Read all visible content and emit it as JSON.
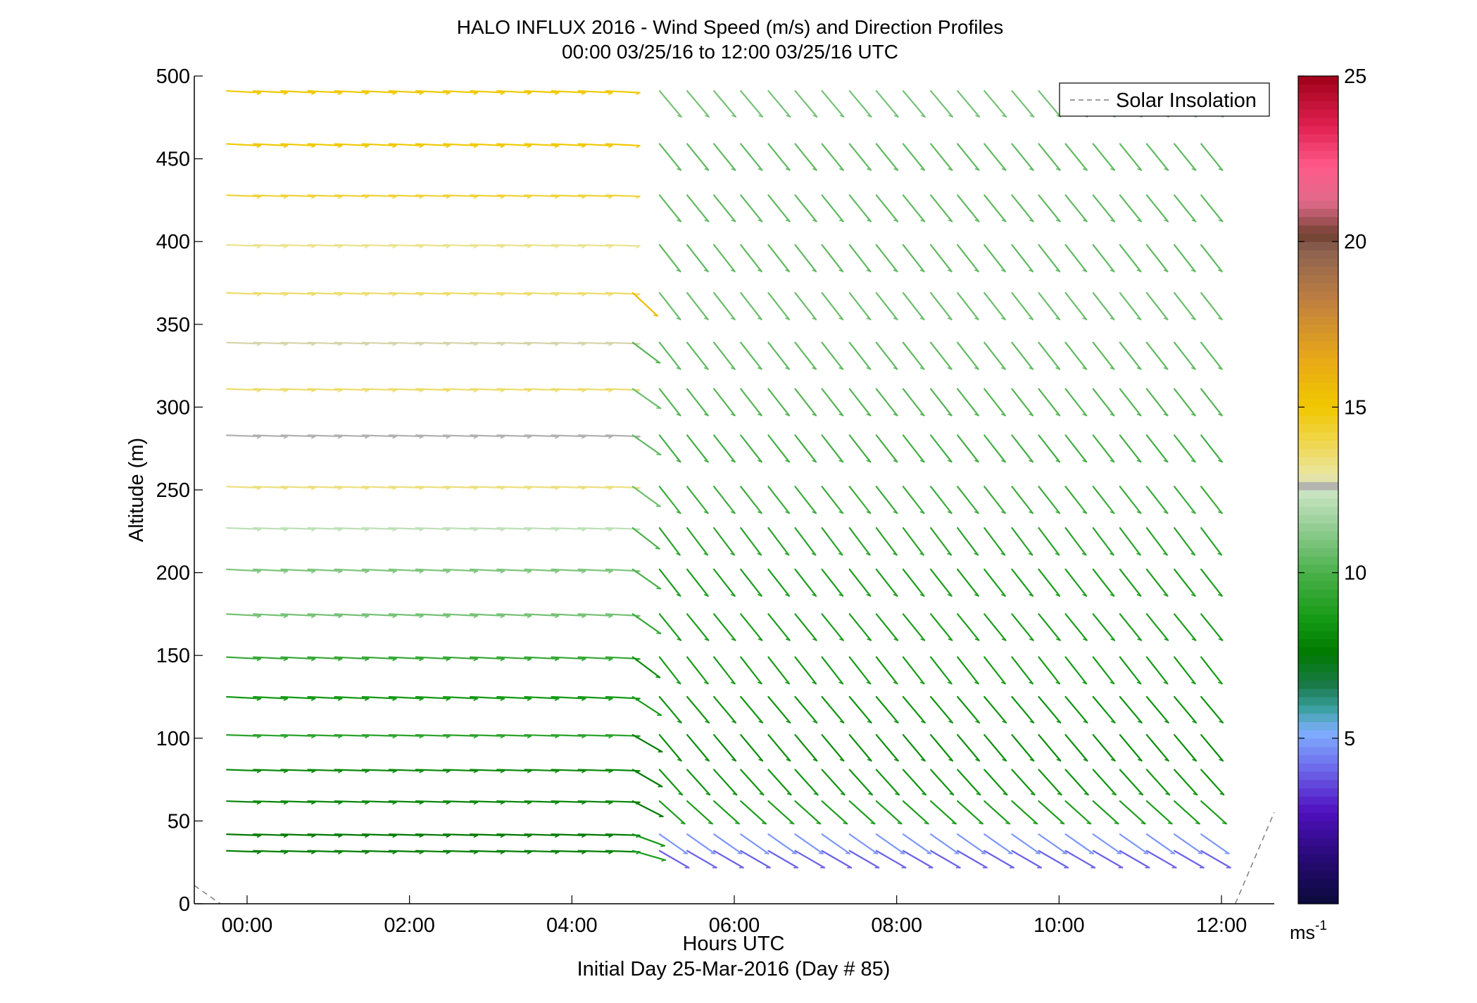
{
  "chart_data": {
    "type": "wind_barb_profile",
    "title": "HALO INFLUX 2016 - Wind Speed (m/s) and Direction Profiles",
    "subtitle": "00:00 03/25/16 to 12:00 03/25/16  UTC",
    "xlabel": "Hours UTC",
    "xlabel2": "Initial Day 25-Mar-2016 (Day # 85)",
    "ylabel": "Altitude (m)",
    "xlim_hours": [
      -0.65,
      12.65
    ],
    "ylim": [
      0,
      500
    ],
    "x_ticks": [
      {
        "value": 0,
        "label": "00:00"
      },
      {
        "value": 2,
        "label": "02:00"
      },
      {
        "value": 4,
        "label": "04:00"
      },
      {
        "value": 6,
        "label": "06:00"
      },
      {
        "value": 8,
        "label": "08:00"
      },
      {
        "value": 10,
        "label": "10:00"
      },
      {
        "value": 12,
        "label": "12:00"
      }
    ],
    "y_ticks": [
      0,
      50,
      100,
      150,
      200,
      250,
      300,
      350,
      400,
      450,
      500
    ],
    "legend": {
      "position": "top-right",
      "entries": [
        {
          "label": "Solar Insolation",
          "style": "dashed",
          "color": "#7f7f7f"
        }
      ]
    },
    "colorbar": {
      "range": [
        0,
        25
      ],
      "ticks": [
        5,
        10,
        15,
        20,
        25
      ],
      "units_label": "ms",
      "units_exp": "-1",
      "stops": [
        {
          "v": 0,
          "c": "#0a0a3a"
        },
        {
          "v": 1.5,
          "c": "#2a0a7a"
        },
        {
          "v": 2.8,
          "c": "#5010c0"
        },
        {
          "v": 4.2,
          "c": "#7070ee"
        },
        {
          "v": 5.2,
          "c": "#80b0ff"
        },
        {
          "v": 5.9,
          "c": "#3aa0a0"
        },
        {
          "v": 6.6,
          "c": "#1a7a4a"
        },
        {
          "v": 7.6,
          "c": "#007a00"
        },
        {
          "v": 8.6,
          "c": "#149a14"
        },
        {
          "v": 10,
          "c": "#4ab04a"
        },
        {
          "v": 11.5,
          "c": "#9ad09a"
        },
        {
          "v": 12.4,
          "c": "#c8e4c0"
        },
        {
          "v": 12.6,
          "c": "#b0b0b0"
        },
        {
          "v": 12.9,
          "c": "#e8e8a8"
        },
        {
          "v": 13.8,
          "c": "#f0d858"
        },
        {
          "v": 15,
          "c": "#f0c800"
        },
        {
          "v": 16.5,
          "c": "#e8a818"
        },
        {
          "v": 18.2,
          "c": "#c08040"
        },
        {
          "v": 19.8,
          "c": "#8a6050"
        },
        {
          "v": 20.2,
          "c": "#704030"
        },
        {
          "v": 21.2,
          "c": "#e06a8a"
        },
        {
          "v": 22.3,
          "c": "#ff5a8a"
        },
        {
          "v": 23.5,
          "c": "#e02050"
        },
        {
          "v": 25,
          "c": "#a00018"
        }
      ]
    },
    "times_hours": [
      -0.25,
      0.08,
      0.42,
      0.75,
      1.08,
      1.42,
      1.75,
      2.08,
      2.42,
      2.75,
      3.08,
      3.42,
      3.75,
      4.08,
      4.42,
      4.75,
      5.08,
      5.42,
      5.75,
      6.08,
      6.42,
      6.75,
      7.08,
      7.42,
      7.75,
      8.08,
      8.42,
      8.75,
      9.08,
      9.42,
      9.75,
      10.08,
      10.42,
      10.75,
      11.08,
      11.42,
      11.75
    ],
    "altitudes_m": [
      32,
      42,
      62,
      81,
      102,
      125,
      149,
      175,
      202,
      227,
      252,
      283,
      311,
      339,
      369,
      398,
      428,
      459,
      491
    ],
    "period_profiles": [
      {
        "from_hour": -0.3,
        "to_hour": 4.45,
        "direction_deg_by_altitude": [
          272,
          272,
          272,
          272,
          272,
          273,
          273,
          273,
          273,
          272,
          272,
          272,
          272,
          272,
          272,
          272,
          272,
          273,
          273
        ],
        "speed_ms_by_altitude": [
          7.8,
          7.6,
          8.0,
          8.1,
          9.2,
          8.6,
          9.4,
          10.8,
          11.0,
          12.2,
          13.4,
          12.6,
          13.6,
          12.8,
          13.6,
          13.2,
          14.2,
          15.0,
          15.0
        ]
      },
      {
        "from_hour": 4.45,
        "to_hour": 4.95,
        "direction_deg_by_altitude": [
          286,
          290,
          297,
          300,
          300,
          303,
          307,
          305,
          305,
          308,
          306,
          305,
          305,
          307,
          313,
          313,
          313,
          313,
          313
        ],
        "speed_ms_by_altitude": [
          8.8,
          8.4,
          7.6,
          7.6,
          7.6,
          8.6,
          8.2,
          9.4,
          10.0,
          10.0,
          10.6,
          10.4,
          10.6,
          10.2,
          15.5,
          15.5,
          15.5,
          15.5,
          15.5
        ]
      },
      {
        "from_hour": 4.95,
        "to_hour": 12.0,
        "direction_deg_by_altitude": [
          300,
          305,
          312,
          318,
          320,
          320,
          322,
          321,
          322,
          323,
          322,
          322,
          322,
          322,
          322,
          322,
          321,
          321,
          320
        ],
        "speed_ms_by_altitude": [
          4.0,
          4.8,
          8.8,
          8.4,
          8.2,
          8.4,
          8.6,
          8.8,
          8.8,
          9.2,
          9.6,
          9.8,
          10.2,
          10.4,
          10.6,
          10.4,
          10.4,
          10.4,
          10.8
        ]
      }
    ],
    "data_gaps": [
      {
        "from_hour": 4.45,
        "to_hour": 4.95,
        "above_altitude_m": 380
      }
    ],
    "solar_insolation": [
      {
        "hour": -0.65,
        "value": 0.2
      },
      {
        "hour": -0.33,
        "value": 0
      },
      {
        "hour": 12.17,
        "value": 0
      },
      {
        "hour": 12.65,
        "value": 1.0
      }
    ]
  }
}
